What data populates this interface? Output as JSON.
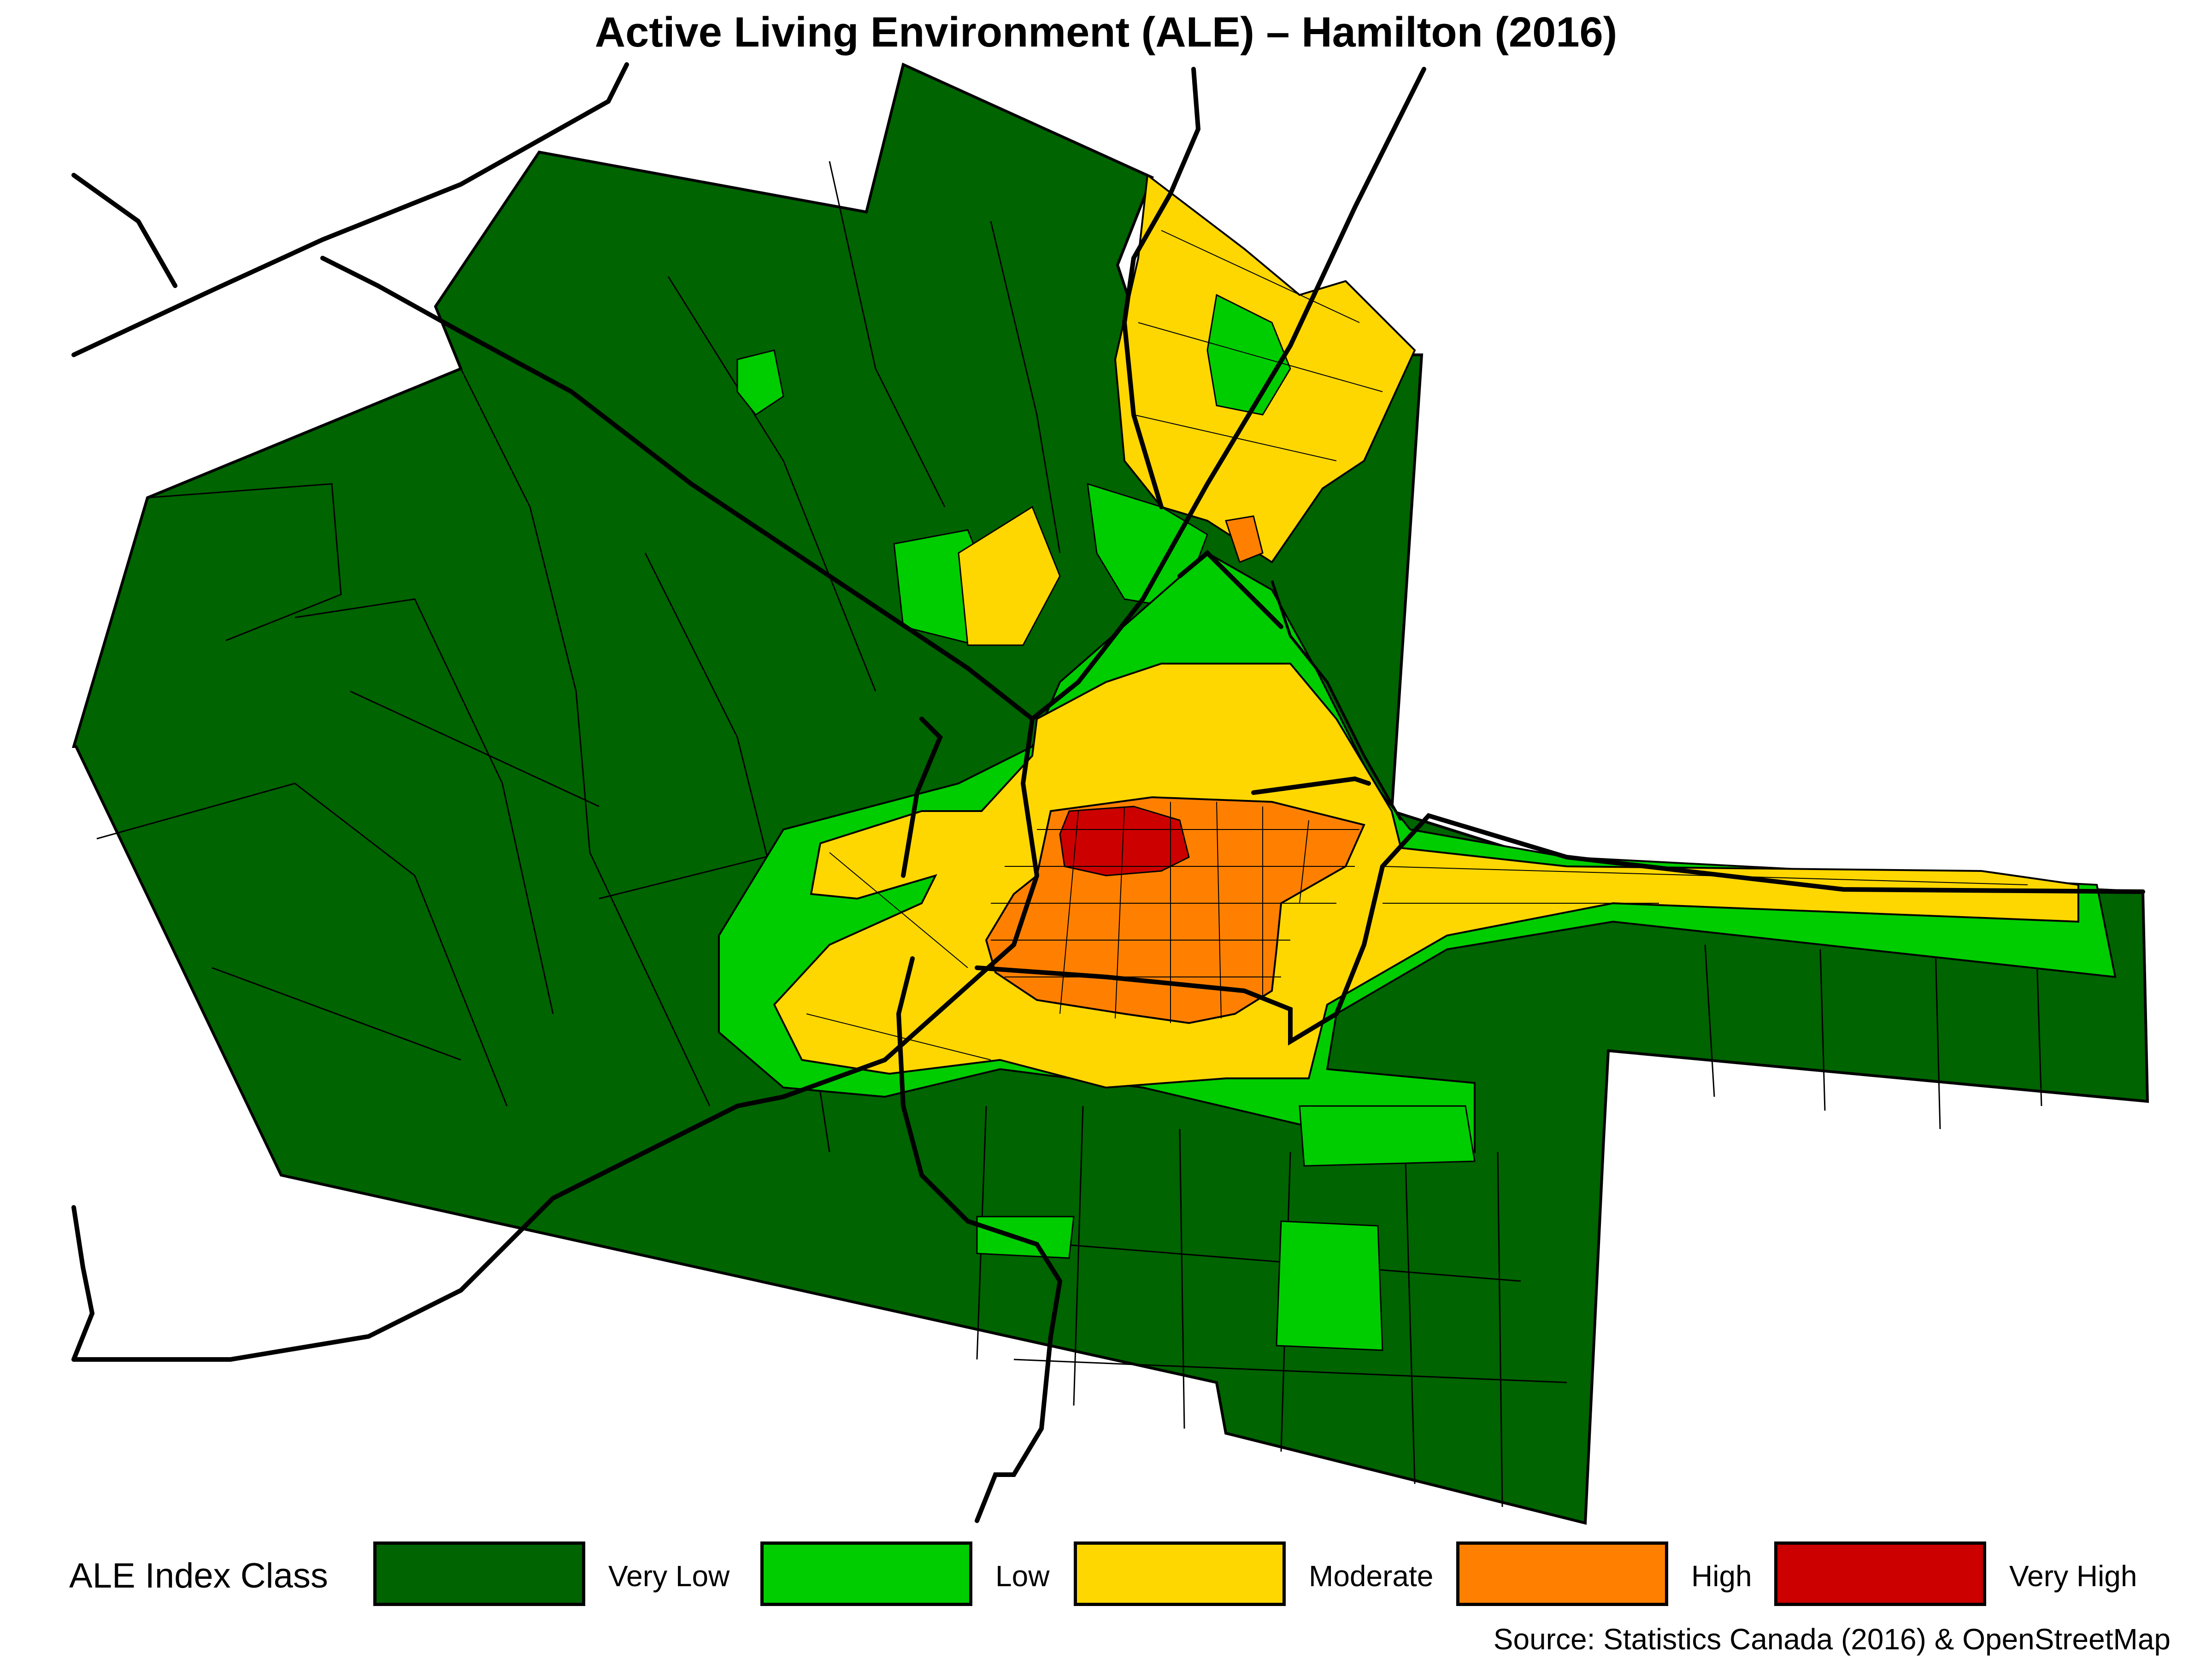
{
  "title": "Active Living Environment (ALE) – Hamilton (2016)",
  "legend": {
    "title": "ALE Index Class",
    "classes": [
      {
        "label": "Very Low",
        "color": "#006400"
      },
      {
        "label": "Low",
        "color": "#00cd00"
      },
      {
        "label": "Moderate",
        "color": "#ffd700"
      },
      {
        "label": "High",
        "color": "#ff8000"
      },
      {
        "label": "Very High",
        "color": "#cd0000"
      }
    ]
  },
  "source": "Source: Statistics Canada (2016) & OpenStreetMap"
}
